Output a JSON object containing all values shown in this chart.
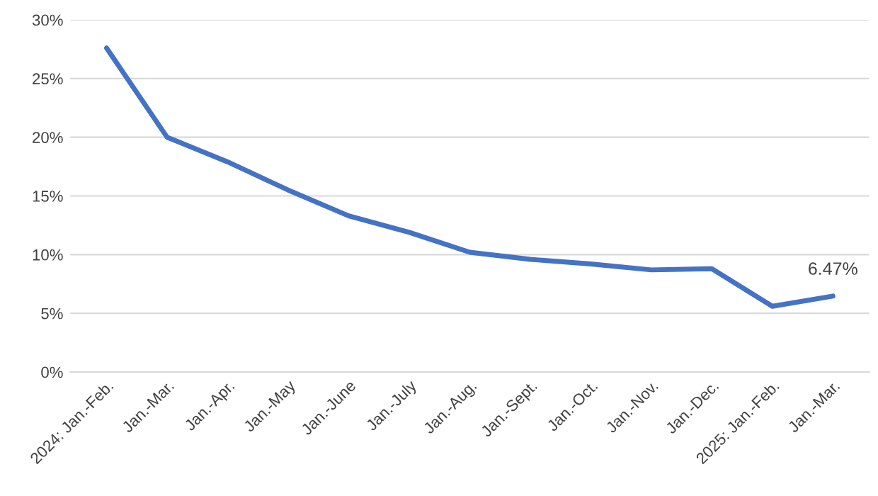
{
  "chart_data": {
    "type": "line",
    "categories": [
      "2024: Jan.-Feb.",
      "Jan.-Mar.",
      "Jan.-Apr.",
      "Jan.-May",
      "Jan.-June",
      "Jan.-July",
      "Jan.-Aug.",
      "Jan.-Sept.",
      "Jan.-Oct.",
      "Jan.-Nov.",
      "Jan.-Dec.",
      "2025: Jan.-Feb.",
      "Jan.-Mar."
    ],
    "series": [
      {
        "color": "#4472c4",
        "values": [
          27.6,
          20.0,
          17.9,
          15.5,
          13.3,
          11.9,
          10.2,
          9.6,
          9.2,
          8.7,
          8.8,
          5.6,
          6.47
        ],
        "value_labels": [
          null,
          null,
          null,
          null,
          null,
          null,
          null,
          null,
          null,
          null,
          null,
          null,
          "6.47%"
        ]
      }
    ],
    "ylim": [
      0,
      30
    ],
    "yticks": [
      {
        "value": 0,
        "label": "0%"
      },
      {
        "value": 5,
        "label": "5%"
      },
      {
        "value": 10,
        "label": "10%"
      },
      {
        "value": 15,
        "label": "15%"
      },
      {
        "value": 20,
        "label": "20%"
      },
      {
        "value": 25,
        "label": "25%"
      },
      {
        "value": 30,
        "label": "30%"
      }
    ],
    "grid": "y",
    "legend": false,
    "marker": "none",
    "line_style": "solid"
  }
}
